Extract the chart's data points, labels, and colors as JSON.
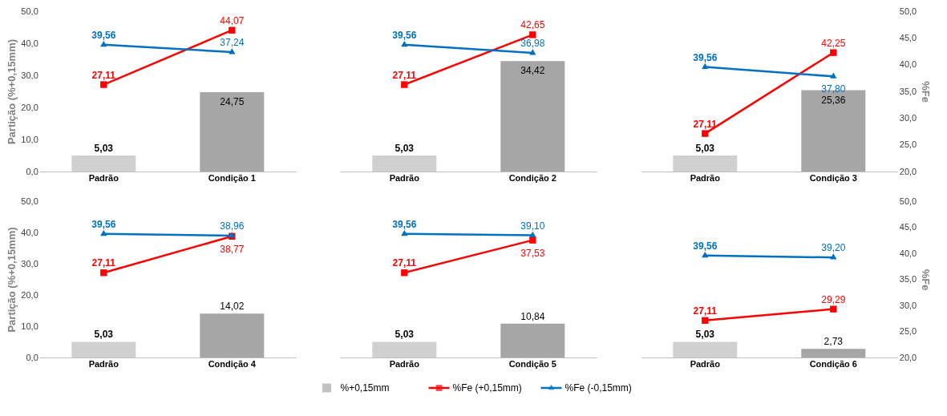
{
  "chart_data": [
    {
      "type": "bar",
      "categories": [
        "Padrão",
        "Condição 1"
      ],
      "ylabel": "Partição (%+0,15mm)",
      "ylim": [
        0,
        50
      ],
      "yticks": [
        {
          "value": 0,
          "label": "0,0"
        },
        {
          "value": 10,
          "label": "10,0"
        },
        {
          "value": 20,
          "label": "20,0"
        },
        {
          "value": 30,
          "label": "30,0"
        },
        {
          "value": 40,
          "label": "40,0"
        },
        {
          "value": 50,
          "label": "50,0"
        }
      ],
      "legend": "bottom",
      "series": [
        {
          "name": "%+0,15mm",
          "colors": [
            "#d0d0d0",
            "#a6a6a6"
          ],
          "values": [
            5.03,
            24.75
          ],
          "value_labels": [
            "5,03",
            "24,75"
          ]
        },
        {
          "name": "%Fe (+0,15mm)",
          "type": "line",
          "color": "#ff0000",
          "marker": "square",
          "values": [
            27.11,
            44.07
          ],
          "value_labels": [
            "27,11",
            "44,07"
          ]
        },
        {
          "name": "%Fe (-0,15mm)",
          "type": "line",
          "color": "#0070c0",
          "marker": "triangle",
          "values": [
            39.56,
            37.24
          ],
          "value_labels": [
            "39,56",
            "37,24"
          ]
        }
      ]
    },
    {
      "type": "bar",
      "categories": [
        "Padrão",
        "Condição 2"
      ],
      "ylim": [
        0,
        50
      ],
      "tick_labels": "x",
      "legend": "bottom",
      "series": [
        {
          "name": "%+0,15mm",
          "colors": [
            "#d0d0d0",
            "#a6a6a6"
          ],
          "values": [
            5.03,
            34.42
          ],
          "value_labels": [
            "5,03",
            "34,42"
          ]
        },
        {
          "name": "%Fe (+0,15mm)",
          "type": "line",
          "color": "#ff0000",
          "marker": "square",
          "values": [
            27.11,
            42.65
          ],
          "value_labels": [
            "27,11",
            "42,65"
          ]
        },
        {
          "name": "%Fe (-0,15mm)",
          "type": "line",
          "color": "#0070c0",
          "marker": "triangle",
          "values": [
            39.56,
            36.98
          ],
          "value_labels": [
            "39,56",
            "36,98"
          ]
        }
      ]
    },
    {
      "type": "bar",
      "categories": [
        "Padrão",
        "Condição 3"
      ],
      "ylim": [
        0,
        50
      ],
      "y2label": "%Fe",
      "y2lim": [
        20,
        50
      ],
      "y2ticks": [
        {
          "value": 20,
          "label": "20,0"
        },
        {
          "value": 25,
          "label": "25,0"
        },
        {
          "value": 30,
          "label": "30,0"
        },
        {
          "value": 35,
          "label": "35,0"
        },
        {
          "value": 40,
          "label": "40,0"
        },
        {
          "value": 45,
          "label": "45,0"
        },
        {
          "value": 50,
          "label": "50,0"
        }
      ],
      "tick_labels": [
        "x",
        "y2"
      ],
      "legend": "bottom",
      "series": [
        {
          "name": "%+0,15mm",
          "colors": [
            "#d0d0d0",
            "#a6a6a6"
          ],
          "values": [
            5.03,
            25.36
          ],
          "value_labels": [
            "5,03",
            "25,36"
          ]
        },
        {
          "name": "%Fe (+0,15mm)",
          "type": "line",
          "axis": "y2",
          "color": "#ff0000",
          "marker": "square",
          "values": [
            27.11,
            42.25
          ],
          "value_labels": [
            "27,11",
            "42,25"
          ]
        },
        {
          "name": "%Fe (-0,15mm)",
          "type": "line",
          "axis": "y2",
          "color": "#0070c0",
          "marker": "triangle",
          "values": [
            39.56,
            37.8
          ],
          "value_labels": [
            "39,56",
            "37,80"
          ]
        }
      ]
    },
    {
      "type": "bar",
      "categories": [
        "Padrão",
        "Condição 4"
      ],
      "ylabel": "Partição (%+0,15mm)",
      "ylim": [
        0,
        50
      ],
      "yticks": [
        {
          "value": 0,
          "label": "0,0"
        },
        {
          "value": 10,
          "label": "10,0"
        },
        {
          "value": 20,
          "label": "20,0"
        },
        {
          "value": 30,
          "label": "30,0"
        },
        {
          "value": 40,
          "label": "40,0"
        },
        {
          "value": 50,
          "label": "50,0"
        }
      ],
      "legend": "bottom",
      "series": [
        {
          "name": "%+0,15mm",
          "colors": [
            "#d0d0d0",
            "#a6a6a6"
          ],
          "values": [
            5.03,
            14.02
          ],
          "value_labels": [
            "5,03",
            "14,02"
          ]
        },
        {
          "name": "%Fe (+0,15mm)",
          "type": "line",
          "color": "#ff0000",
          "marker": "square",
          "values": [
            27.11,
            38.77
          ],
          "value_labels": [
            "27,11",
            "38,77"
          ]
        },
        {
          "name": "%Fe (-0,15mm)",
          "type": "line",
          "color": "#0070c0",
          "marker": "triangle",
          "values": [
            39.56,
            38.96
          ],
          "value_labels": [
            "39,56",
            "38,96"
          ]
        }
      ]
    },
    {
      "type": "bar",
      "categories": [
        "Padrão",
        "Condição 5"
      ],
      "ylim": [
        0,
        50
      ],
      "tick_labels": "x",
      "legend": "bottom",
      "series": [
        {
          "name": "%+0,15mm",
          "colors": [
            "#d0d0d0",
            "#a6a6a6"
          ],
          "values": [
            5.03,
            10.84
          ],
          "value_labels": [
            "5,03",
            "10,84"
          ]
        },
        {
          "name": "%Fe (+0,15mm)",
          "type": "line",
          "color": "#ff0000",
          "marker": "square",
          "values": [
            27.11,
            37.53
          ],
          "value_labels": [
            "27,11",
            "37,53"
          ]
        },
        {
          "name": "%Fe (-0,15mm)",
          "type": "line",
          "color": "#0070c0",
          "marker": "triangle",
          "values": [
            39.56,
            39.1
          ],
          "value_labels": [
            "39,56",
            "39,10"
          ]
        }
      ]
    },
    {
      "type": "bar",
      "categories": [
        "Padrão",
        "Condição 6"
      ],
      "ylim": [
        0,
        50
      ],
      "y2label": "%Fe",
      "y2lim": [
        20,
        50
      ],
      "y2ticks": [
        {
          "value": 20,
          "label": "20,0"
        },
        {
          "value": 25,
          "label": "25,0"
        },
        {
          "value": 30,
          "label": "30,0"
        },
        {
          "value": 35,
          "label": "35,0"
        },
        {
          "value": 40,
          "label": "40,0"
        },
        {
          "value": 45,
          "label": "45,0"
        },
        {
          "value": 50,
          "label": "50,0"
        }
      ],
      "tick_labels": [
        "x",
        "y2"
      ],
      "legend": "bottom",
      "series": [
        {
          "name": "%+0,15mm",
          "colors": [
            "#d0d0d0",
            "#a6a6a6"
          ],
          "values": [
            5.03,
            2.73
          ],
          "value_labels": [
            "5,03",
            "2,73"
          ]
        },
        {
          "name": "%Fe (+0,15mm)",
          "type": "line",
          "axis": "y2",
          "color": "#ff0000",
          "marker": "square",
          "values": [
            27.11,
            29.29
          ],
          "value_labels": [
            "27,11",
            "29,29"
          ]
        },
        {
          "name": "%Fe (-0,15mm)",
          "type": "line",
          "axis": "y2",
          "color": "#0070c0",
          "marker": "triangle",
          "values": [
            39.56,
            39.2
          ],
          "value_labels": [
            "39,56",
            "39,20"
          ]
        }
      ]
    }
  ]
}
